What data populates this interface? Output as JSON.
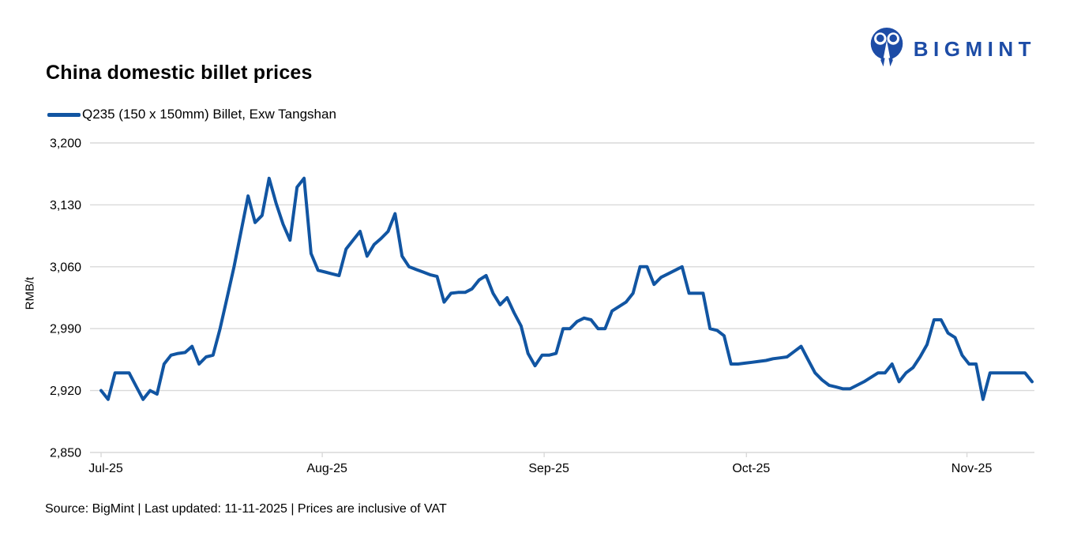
{
  "header": {
    "title": "China domestic billet prices",
    "logo_text": "BIGMINT"
  },
  "legend": {
    "label": "Q235 (150 x 150mm) Billet, Exw Tangshan"
  },
  "footer": {
    "source_note": "Source: BigMint | Last updated: 11-11-2025 | Prices are inclusive of VAT"
  },
  "colors": {
    "series": "#1155A2",
    "logo": "#1D4CA6",
    "grid": "#D9D9D9",
    "text": "#000000"
  },
  "chart_data": {
    "type": "line",
    "title": "China domestic billet prices",
    "xlabel": "",
    "ylabel": "RMB/t",
    "ylim": [
      2850,
      3200
    ],
    "y_ticks": [
      2850,
      2920,
      2990,
      3060,
      3130,
      3200
    ],
    "x_unit": "days since 2025-07-01",
    "x_ticks": [
      {
        "label": "Jul-25",
        "day": 0
      },
      {
        "label": "Aug-25",
        "day": 31.6
      },
      {
        "label": "Sep-25",
        "day": 63.3
      },
      {
        "label": "Oct-25",
        "day": 92.2
      },
      {
        "label": "Nov-25",
        "day": 123.7
      }
    ],
    "grid": "horizontal",
    "legend_position": "top-left",
    "series": [
      {
        "name": "Q235 (150 x 150mm) Billet, Exw Tangshan",
        "points": [
          [
            0,
            2920
          ],
          [
            1,
            2910
          ],
          [
            2,
            2940
          ],
          [
            3,
            2940
          ],
          [
            4,
            2940
          ],
          [
            5,
            2925
          ],
          [
            6,
            2910
          ],
          [
            7,
            2920
          ],
          [
            8,
            2916
          ],
          [
            9,
            2950
          ],
          [
            10,
            2960
          ],
          [
            11,
            2962
          ],
          [
            12,
            2963
          ],
          [
            13,
            2970
          ],
          [
            14,
            2950
          ],
          [
            15,
            2958
          ],
          [
            16,
            2960
          ],
          [
            17,
            2990
          ],
          [
            18,
            3025
          ],
          [
            19,
            3060
          ],
          [
            20,
            3100
          ],
          [
            21,
            3140
          ],
          [
            22,
            3110
          ],
          [
            23,
            3118
          ],
          [
            24,
            3160
          ],
          [
            25,
            3132
          ],
          [
            26,
            3108
          ],
          [
            27,
            3090
          ],
          [
            28,
            3150
          ],
          [
            29,
            3160
          ],
          [
            30,
            3075
          ],
          [
            31,
            3056
          ],
          [
            32,
            3054
          ],
          [
            33,
            3052
          ],
          [
            34,
            3050
          ],
          [
            35,
            3080
          ],
          [
            36,
            3090
          ],
          [
            37,
            3100
          ],
          [
            38,
            3072
          ],
          [
            39,
            3085
          ],
          [
            40,
            3092
          ],
          [
            41,
            3100
          ],
          [
            42,
            3120
          ],
          [
            43,
            3072
          ],
          [
            44,
            3060
          ],
          [
            45,
            3057
          ],
          [
            46,
            3054
          ],
          [
            47,
            3051
          ],
          [
            48,
            3049
          ],
          [
            49,
            3020
          ],
          [
            50,
            3030
          ],
          [
            51,
            3031
          ],
          [
            52,
            3031
          ],
          [
            53,
            3035
          ],
          [
            54,
            3045
          ],
          [
            55,
            3050
          ],
          [
            56,
            3030
          ],
          [
            57,
            3017
          ],
          [
            58,
            3025
          ],
          [
            59,
            3008
          ],
          [
            60,
            2993
          ],
          [
            61,
            2962
          ],
          [
            62,
            2948
          ],
          [
            63,
            2960
          ],
          [
            64,
            2960
          ],
          [
            65,
            2962
          ],
          [
            66,
            2990
          ],
          [
            67,
            2990
          ],
          [
            68,
            2998
          ],
          [
            69,
            3002
          ],
          [
            70,
            3000
          ],
          [
            71,
            2990
          ],
          [
            72,
            2990
          ],
          [
            73,
            3010
          ],
          [
            74,
            3015
          ],
          [
            75,
            3020
          ],
          [
            76,
            3030
          ],
          [
            77,
            3060
          ],
          [
            78,
            3060
          ],
          [
            79,
            3040
          ],
          [
            80,
            3048
          ],
          [
            81,
            3052
          ],
          [
            82,
            3056
          ],
          [
            83,
            3060
          ],
          [
            84,
            3030
          ],
          [
            85,
            3030
          ],
          [
            86,
            3030
          ],
          [
            87,
            2990
          ],
          [
            88,
            2988
          ],
          [
            89,
            2982
          ],
          [
            90,
            2950
          ],
          [
            91,
            2950
          ],
          [
            92,
            2951
          ],
          [
            93,
            2952
          ],
          [
            94,
            2953
          ],
          [
            95,
            2954
          ],
          [
            96,
            2956
          ],
          [
            97,
            2957
          ],
          [
            98,
            2958
          ],
          [
            99,
            2964
          ],
          [
            100,
            2970
          ],
          [
            101,
            2955
          ],
          [
            102,
            2940
          ],
          [
            103,
            2932
          ],
          [
            104,
            2926
          ],
          [
            105,
            2924
          ],
          [
            106,
            2922
          ],
          [
            107,
            2922
          ],
          [
            108,
            2926
          ],
          [
            109,
            2930
          ],
          [
            110,
            2935
          ],
          [
            111,
            2940
          ],
          [
            112,
            2940
          ],
          [
            113,
            2950
          ],
          [
            114,
            2930
          ],
          [
            115,
            2940
          ],
          [
            116,
            2946
          ],
          [
            117,
            2958
          ],
          [
            118,
            2972
          ],
          [
            119,
            3000
          ],
          [
            120,
            3000
          ],
          [
            121,
            2985
          ],
          [
            122,
            2980
          ],
          [
            123,
            2960
          ],
          [
            124,
            2950
          ],
          [
            125,
            2950
          ],
          [
            126,
            2910
          ],
          [
            127,
            2940
          ],
          [
            128,
            2940
          ],
          [
            129,
            2940
          ],
          [
            130,
            2940
          ],
          [
            131,
            2940
          ],
          [
            132,
            2940
          ],
          [
            133,
            2930
          ]
        ]
      }
    ]
  }
}
